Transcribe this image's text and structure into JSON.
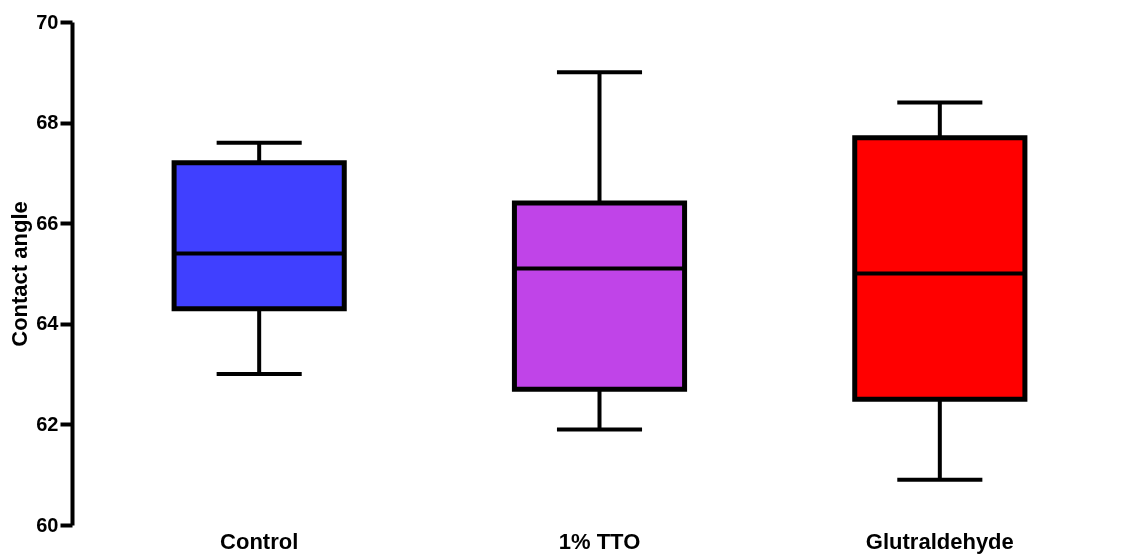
{
  "chart_data": {
    "type": "box",
    "ylabel": "Contact angle",
    "categories": [
      "Control",
      "1% TTO",
      "Glutraldehyde"
    ],
    "boxes": [
      {
        "low": 63.0,
        "q1": 64.3,
        "median": 65.4,
        "q3": 67.2,
        "high": 67.6
      },
      {
        "low": 61.9,
        "q1": 62.7,
        "median": 65.1,
        "q3": 66.4,
        "high": 69.0
      },
      {
        "low": 60.9,
        "q1": 62.5,
        "median": 65.0,
        "q3": 67.7,
        "high": 68.4
      }
    ],
    "colors": [
      "#4040ff",
      "#c044e8",
      "#ff0000"
    ],
    "ylim": [
      60,
      70
    ],
    "yticks": [
      60,
      62,
      64,
      66,
      68,
      70
    ],
    "grid": false
  }
}
